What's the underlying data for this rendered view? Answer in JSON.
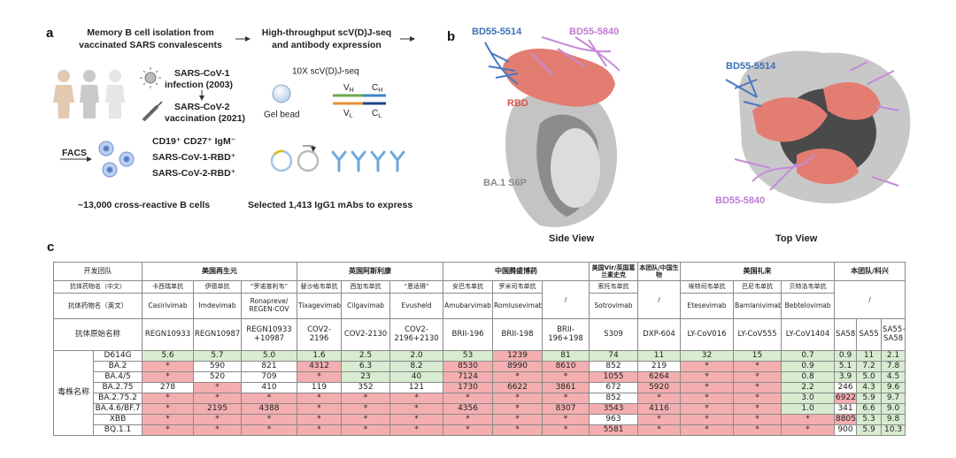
{
  "panel_a": {
    "label": "a",
    "isolation_title": [
      "Memory B cell isolation from",
      "vaccinated SARS convalescents"
    ],
    "sequencing_title": [
      "High-throughput scV(D)J-seq",
      "and antibody expression"
    ],
    "infection": [
      "SARS-CoV-1",
      "infection (2003)"
    ],
    "vaccination": [
      "SARS-CoV-2",
      "vaccination (2021)"
    ],
    "facs": "FACS",
    "markers": [
      "CD19⁺ CD27⁺ IgM⁻",
      "SARS-CoV-1-RBD⁺",
      "SARS-CoV-2-RBD⁺"
    ],
    "b_cells": "~13,000 cross-reactive B cells",
    "seq_method": "10X scV(D)J-seq",
    "gel_bead": "Gel bead",
    "segments": [
      {
        "main": "V",
        "sub": "H"
      },
      {
        "main": "C",
        "sub": "H"
      },
      {
        "main": "V",
        "sub": "L"
      },
      {
        "main": "C",
        "sub": "L"
      }
    ],
    "selected": "Selected 1,413 IgG1 mAbs to express"
  },
  "panel_b": {
    "label": "b",
    "side": {
      "antibody_1": "BD55-5514",
      "antibody_2": "BD55-5840",
      "rbd": "RBD",
      "spike": "BA.1 S6P",
      "caption": "Side View"
    },
    "top": {
      "antibody_1": "BD55-5514",
      "antibody_2": "BD55-5840",
      "caption": "Top View"
    }
  },
  "panel_c": {
    "label": "c",
    "team_row": [
      "开发团队",
      "美国再生元",
      "英国阿斯利康",
      "中国腾盛博药",
      "美国Vir/英国葛兰素史克",
      "本团队/中国生物",
      "美国礼来",
      "本团队/科兴"
    ],
    "name_cn_row": [
      "抗体药物名（中文）",
      "卡西瑞单抗",
      "伊德单抗",
      "“罗诺普利韦”",
      "替沙格韦单抗",
      "西加韦单抗",
      "“恩适得”",
      "安巴韦单抗",
      "罗米司韦单抗",
      "/",
      "索托韦单抗",
      "/",
      "埃特司韦单抗",
      "巴尼韦单抗",
      "贝特洛韦单抗",
      "/"
    ],
    "name_en_row": [
      "抗体药物名（英文）",
      "Casirivimab",
      "Imdevimab",
      "Ronapreve/ REGEN-COV",
      "Tixagevimab",
      "Cilgavimab",
      "Evusheld",
      "Amubarvimab",
      "Romlusevimab",
      "Sotrovimab",
      "Etesevimab",
      "Bamlanivimab",
      "Bebtelovimab"
    ],
    "original_row": [
      "抗体原始名称",
      "REGN10933",
      "REGN10987",
      "REGN10933 +10987",
      "COV2-2196",
      "COV2-2130",
      "COV2-2196+2130",
      "BRII-196",
      "BRII-198",
      "BRII-196+198",
      "S309",
      "DXP-604",
      "LY-CoV016",
      "LY-CoV555",
      "LY-CoV1404",
      "SA58",
      "SA55",
      "SA55+ SA58"
    ],
    "strain_header": "毒株名称",
    "strains": [
      "D614G",
      "BA.2",
      "BA.4/5",
      "BA.2.75",
      "BA.2.75.2",
      "BA.4.6/BF.7",
      "XBB",
      "BQ.1.1"
    ],
    "values": [
      [
        "5.6",
        "5.7",
        "5.0",
        "1.6",
        "2.5",
        "2.0",
        "53",
        "1239",
        "81",
        "74",
        "11",
        "32",
        "15",
        "0.7",
        "0.9",
        "11",
        "2.1"
      ],
      [
        "*",
        "590",
        "821",
        "4312",
        "6.3",
        "8.2",
        "8530",
        "8990",
        "8610",
        "852",
        "219",
        "*",
        "*",
        "0.9",
        "5.1",
        "7.2",
        "7.8"
      ],
      [
        "*",
        "520",
        "709",
        "*",
        "23",
        "40",
        "7124",
        "*",
        "*",
        "1055",
        "6264",
        "*",
        "*",
        "0.8",
        "3.9",
        "5.0",
        "4.5"
      ],
      [
        "278",
        "*",
        "410",
        "119",
        "352",
        "121",
        "1730",
        "6622",
        "3861",
        "672",
        "5920",
        "*",
        "*",
        "2.2",
        "246",
        "4.3",
        "9.6"
      ],
      [
        "*",
        "*",
        "*",
        "*",
        "*",
        "*",
        "*",
        "*",
        "*",
        "852",
        "*",
        "*",
        "*",
        "3.0",
        "6922",
        "5.9",
        "9.7"
      ],
      [
        "*",
        "2195",
        "4388",
        "*",
        "*",
        "*",
        "4356",
        "*",
        "8307",
        "3543",
        "4116",
        "*",
        "*",
        "1.0",
        "341",
        "6.6",
        "9.0"
      ],
      [
        "*",
        "*",
        "*",
        "*",
        "*",
        "*",
        "*",
        "*",
        "*",
        "963",
        "*",
        "*",
        "*",
        "*",
        "8805",
        "5.3",
        "9.8"
      ],
      [
        "*",
        "*",
        "*",
        "*",
        "*",
        "*",
        "*",
        "*",
        "*",
        "5581",
        "*",
        "*",
        "*",
        "*",
        "900",
        "5.9",
        "10.3"
      ]
    ]
  }
}
